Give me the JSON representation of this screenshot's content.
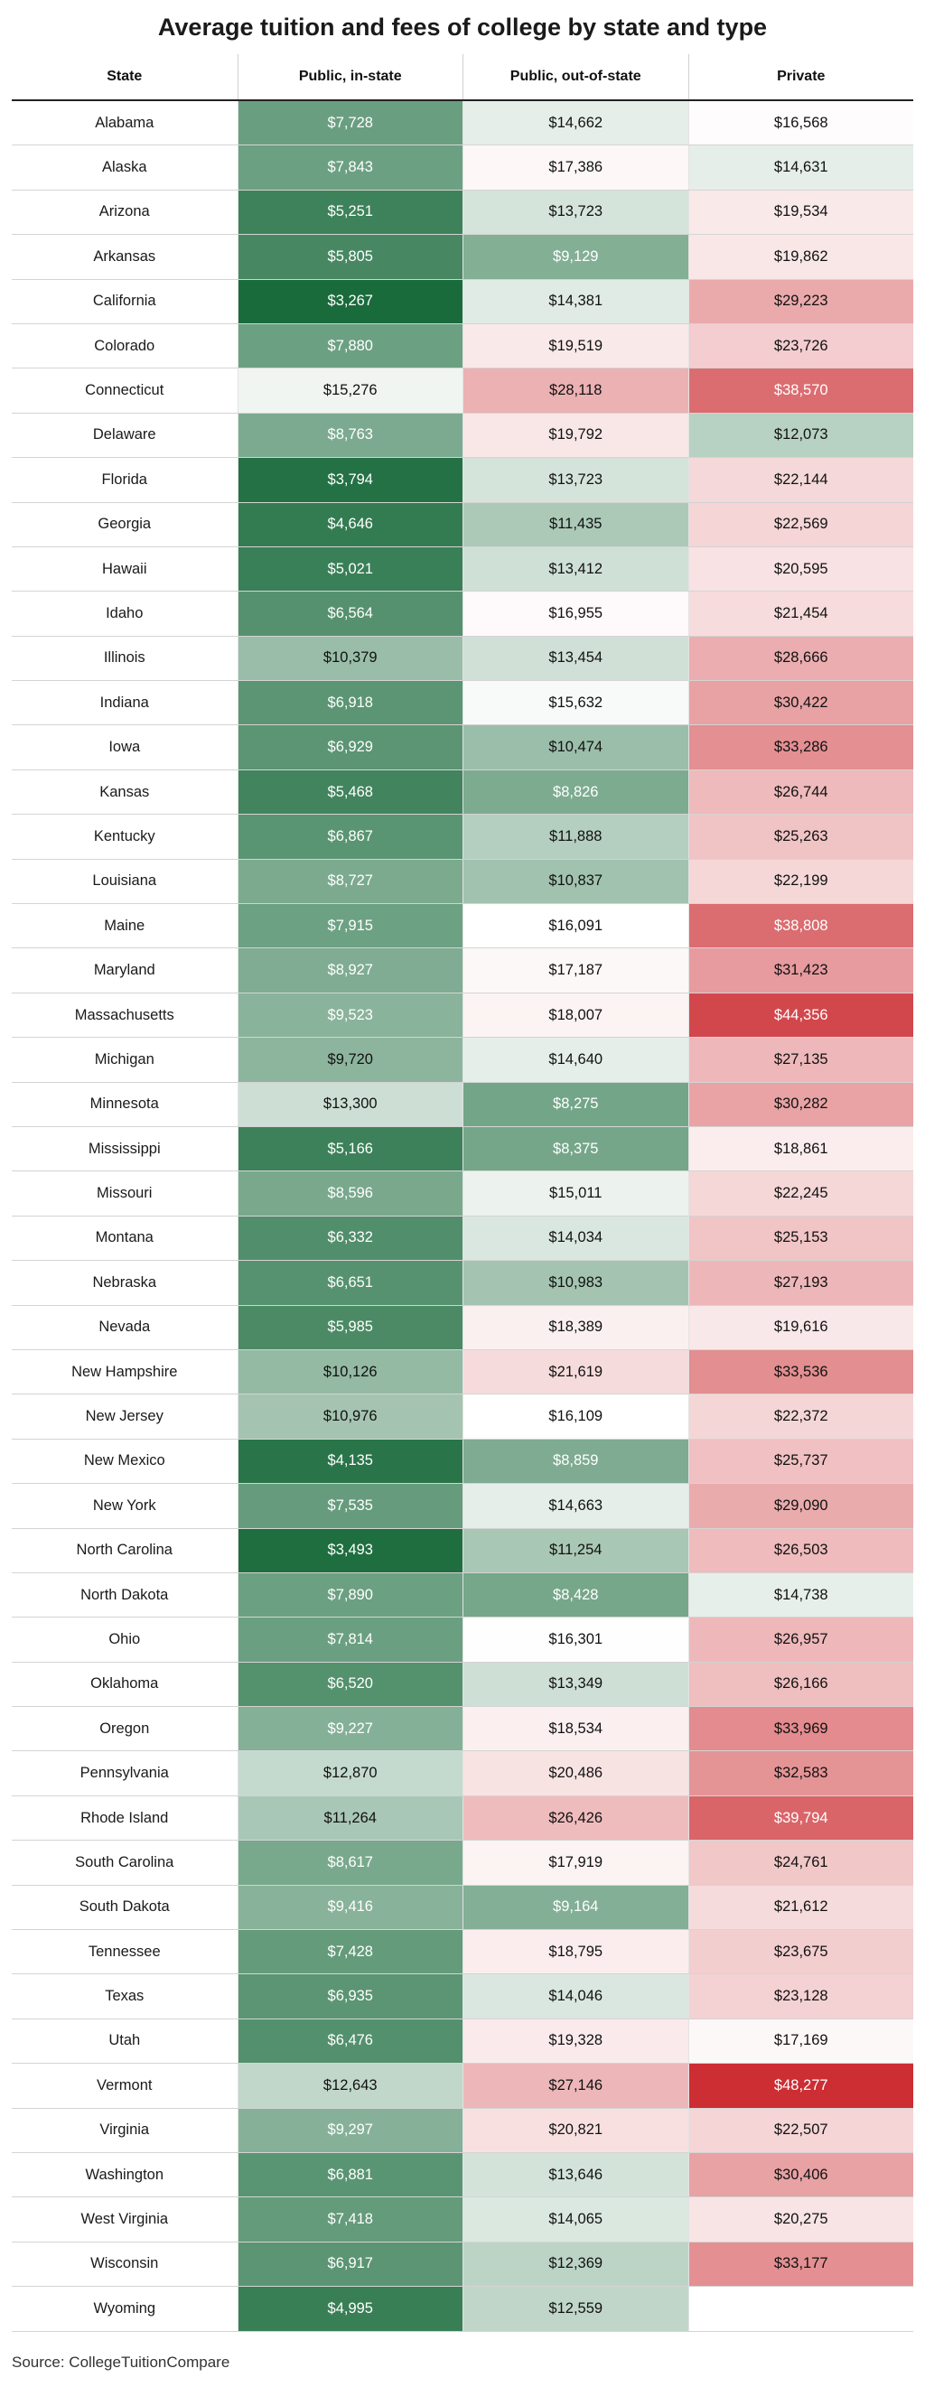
{
  "chart_data": {
    "type": "heatmap",
    "title": "Average tuition and fees of college by state and type",
    "columns": [
      "State",
      "Public, in-state",
      "Public, out-of-state",
      "Private"
    ],
    "rows": [
      {
        "state": "Alabama",
        "values": [
          7728,
          14662,
          16568
        ]
      },
      {
        "state": "Alaska",
        "values": [
          7843,
          17386,
          14631
        ]
      },
      {
        "state": "Arizona",
        "values": [
          5251,
          13723,
          19534
        ]
      },
      {
        "state": "Arkansas",
        "values": [
          5805,
          9129,
          19862
        ]
      },
      {
        "state": "California",
        "values": [
          3267,
          14381,
          29223
        ]
      },
      {
        "state": "Colorado",
        "values": [
          7880,
          19519,
          23726
        ]
      },
      {
        "state": "Connecticut",
        "values": [
          15276,
          28118,
          38570
        ]
      },
      {
        "state": "Delaware",
        "values": [
          8763,
          19792,
          12073
        ]
      },
      {
        "state": "Florida",
        "values": [
          3794,
          13723,
          22144
        ]
      },
      {
        "state": "Georgia",
        "values": [
          4646,
          11435,
          22569
        ]
      },
      {
        "state": "Hawaii",
        "values": [
          5021,
          13412,
          20595
        ]
      },
      {
        "state": "Idaho",
        "values": [
          6564,
          16955,
          21454
        ]
      },
      {
        "state": "Illinois",
        "values": [
          10379,
          13454,
          28666
        ]
      },
      {
        "state": "Indiana",
        "values": [
          6918,
          15632,
          30422
        ]
      },
      {
        "state": "Iowa",
        "values": [
          6929,
          10474,
          33286
        ]
      },
      {
        "state": "Kansas",
        "values": [
          5468,
          8826,
          26744
        ]
      },
      {
        "state": "Kentucky",
        "values": [
          6867,
          11888,
          25263
        ]
      },
      {
        "state": "Louisiana",
        "values": [
          8727,
          10837,
          22199
        ]
      },
      {
        "state": "Maine",
        "values": [
          7915,
          16091,
          38808
        ]
      },
      {
        "state": "Maryland",
        "values": [
          8927,
          17187,
          31423
        ]
      },
      {
        "state": "Massachusetts",
        "values": [
          9523,
          18007,
          44356
        ]
      },
      {
        "state": "Michigan",
        "values": [
          9720,
          14640,
          27135
        ]
      },
      {
        "state": "Minnesota",
        "values": [
          13300,
          8275,
          30282
        ]
      },
      {
        "state": "Mississippi",
        "values": [
          5166,
          8375,
          18861
        ]
      },
      {
        "state": "Missouri",
        "values": [
          8596,
          15011,
          22245
        ]
      },
      {
        "state": "Montana",
        "values": [
          6332,
          14034,
          25153
        ]
      },
      {
        "state": "Nebraska",
        "values": [
          6651,
          10983,
          27193
        ]
      },
      {
        "state": "Nevada",
        "values": [
          5985,
          18389,
          19616
        ]
      },
      {
        "state": "New Hampshire",
        "values": [
          10126,
          21619,
          33536
        ]
      },
      {
        "state": "New Jersey",
        "values": [
          10976,
          16109,
          22372
        ]
      },
      {
        "state": "New Mexico",
        "values": [
          4135,
          8859,
          25737
        ]
      },
      {
        "state": "New York",
        "values": [
          7535,
          14663,
          29090
        ]
      },
      {
        "state": "North Carolina",
        "values": [
          3493,
          11254,
          26503
        ]
      },
      {
        "state": "North Dakota",
        "values": [
          7890,
          8428,
          14738
        ]
      },
      {
        "state": "Ohio",
        "values": [
          7814,
          16301,
          26957
        ]
      },
      {
        "state": "Oklahoma",
        "values": [
          6520,
          13349,
          26166
        ]
      },
      {
        "state": "Oregon",
        "values": [
          9227,
          18534,
          33969
        ]
      },
      {
        "state": "Pennsylvania",
        "values": [
          12870,
          20486,
          32583
        ]
      },
      {
        "state": "Rhode Island",
        "values": [
          11264,
          26426,
          39794
        ]
      },
      {
        "state": "South Carolina",
        "values": [
          8617,
          17919,
          24761
        ]
      },
      {
        "state": "South Dakota",
        "values": [
          9416,
          9164,
          21612
        ]
      },
      {
        "state": "Tennessee",
        "values": [
          7428,
          18795,
          23675
        ]
      },
      {
        "state": "Texas",
        "values": [
          6935,
          14046,
          23128
        ]
      },
      {
        "state": "Utah",
        "values": [
          6476,
          19328,
          17169
        ]
      },
      {
        "state": "Vermont",
        "values": [
          12643,
          27146,
          48277
        ]
      },
      {
        "state": "Virginia",
        "values": [
          9297,
          20821,
          22507
        ]
      },
      {
        "state": "Washington",
        "values": [
          6881,
          13646,
          30406
        ]
      },
      {
        "state": "West Virginia",
        "values": [
          7418,
          14065,
          20275
        ]
      },
      {
        "state": "Wisconsin",
        "values": [
          6917,
          12369,
          33177
        ]
      },
      {
        "state": "Wyoming",
        "values": [
          4995,
          12559,
          null
        ]
      }
    ],
    "color_scale": {
      "low": "#1a6b3c",
      "mid": "#ffffff",
      "high": "#cc2e33",
      "low_value": 3267,
      "mid_value": 16100,
      "high_value": 48277
    },
    "source": "Source: CollegeTuitionCompare"
  }
}
